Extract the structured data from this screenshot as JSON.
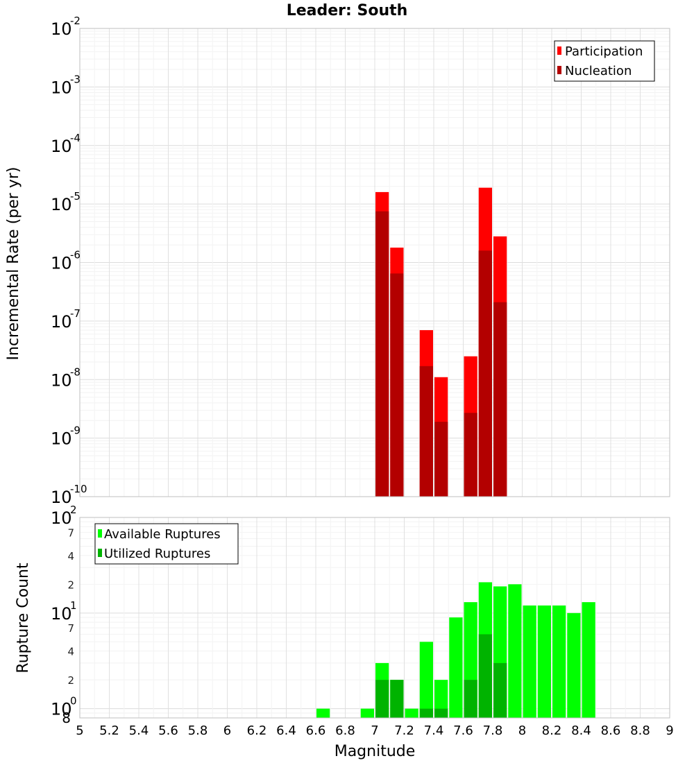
{
  "chart_data": [
    {
      "type": "bar",
      "title": "Leader: South",
      "ylabel": "Incremental Rate (per yr)",
      "yscale": "log",
      "ylim": [
        1e-10,
        0.01
      ],
      "xlim": [
        5,
        9
      ],
      "grid": true,
      "legend_position": "top-right",
      "bar_width": 0.1,
      "series": [
        {
          "name": "Participation",
          "color": "#ff0000",
          "x": [
            7.05,
            7.15,
            7.35,
            7.45,
            7.65,
            7.75,
            7.85
          ],
          "values": [
            1.6e-05,
            1.8e-06,
            7e-08,
            1.1e-08,
            2.5e-08,
            1.9e-05,
            2.8e-06
          ]
        },
        {
          "name": "Nucleation",
          "color": "#b30000",
          "x": [
            7.05,
            7.15,
            7.35,
            7.45,
            7.65,
            7.75,
            7.85
          ],
          "values": [
            7.5e-06,
            6.5e-07,
            1.7e-08,
            1.9e-09,
            2.7e-09,
            1.6e-06,
            2.1e-07
          ]
        }
      ]
    },
    {
      "type": "bar",
      "xlabel": "Magnitude",
      "ylabel": "Rupture Count",
      "yscale": "log",
      "ylim": [
        0.8,
        100
      ],
      "xlim": [
        5,
        9
      ],
      "grid": true,
      "legend_position": "top-left",
      "bar_width": 0.1,
      "series": [
        {
          "name": "Available Ruptures",
          "color": "#00ff00",
          "x": [
            6.65,
            6.95,
            7.05,
            7.15,
            7.25,
            7.35,
            7.45,
            7.55,
            7.65,
            7.75,
            7.85,
            7.95,
            8.05,
            8.15,
            8.25,
            8.35,
            8.45
          ],
          "values": [
            1,
            1,
            3,
            2,
            1,
            5,
            2,
            9,
            13,
            21,
            19,
            20,
            12,
            12,
            12,
            10,
            13
          ]
        },
        {
          "name": "Utilized Ruptures",
          "color": "#00b300",
          "x": [
            7.05,
            7.15,
            7.35,
            7.45,
            7.65,
            7.75,
            7.85
          ],
          "values": [
            2,
            2,
            1,
            1,
            2,
            6,
            3
          ]
        }
      ],
      "xticks": [
        "5",
        "5.2",
        "5.4",
        "5.6",
        "5.8",
        "6",
        "6.2",
        "6.4",
        "6.6",
        "6.8",
        "7",
        "7.2",
        "7.4",
        "7.6",
        "7.8",
        "8",
        "8.2",
        "8.4",
        "8.6",
        "8.8",
        "9"
      ]
    }
  ],
  "top_yticks": [
    {
      "base": "10",
      "exp": "-10"
    },
    {
      "base": "10",
      "exp": "-9"
    },
    {
      "base": "10",
      "exp": "-8"
    },
    {
      "base": "10",
      "exp": "-7"
    },
    {
      "base": "10",
      "exp": "-6"
    },
    {
      "base": "10",
      "exp": "-5"
    },
    {
      "base": "10",
      "exp": "-4"
    },
    {
      "base": "10",
      "exp": "-3"
    },
    {
      "base": "10",
      "exp": "-2"
    }
  ],
  "bottom_yticks": {
    "major": [
      {
        "base": "10",
        "exp": "0"
      },
      {
        "base": "10",
        "exp": "1"
      },
      {
        "base": "10",
        "exp": "2"
      }
    ],
    "minor": [
      "8",
      "2",
      "4",
      "7",
      "2",
      "4",
      "7"
    ]
  }
}
